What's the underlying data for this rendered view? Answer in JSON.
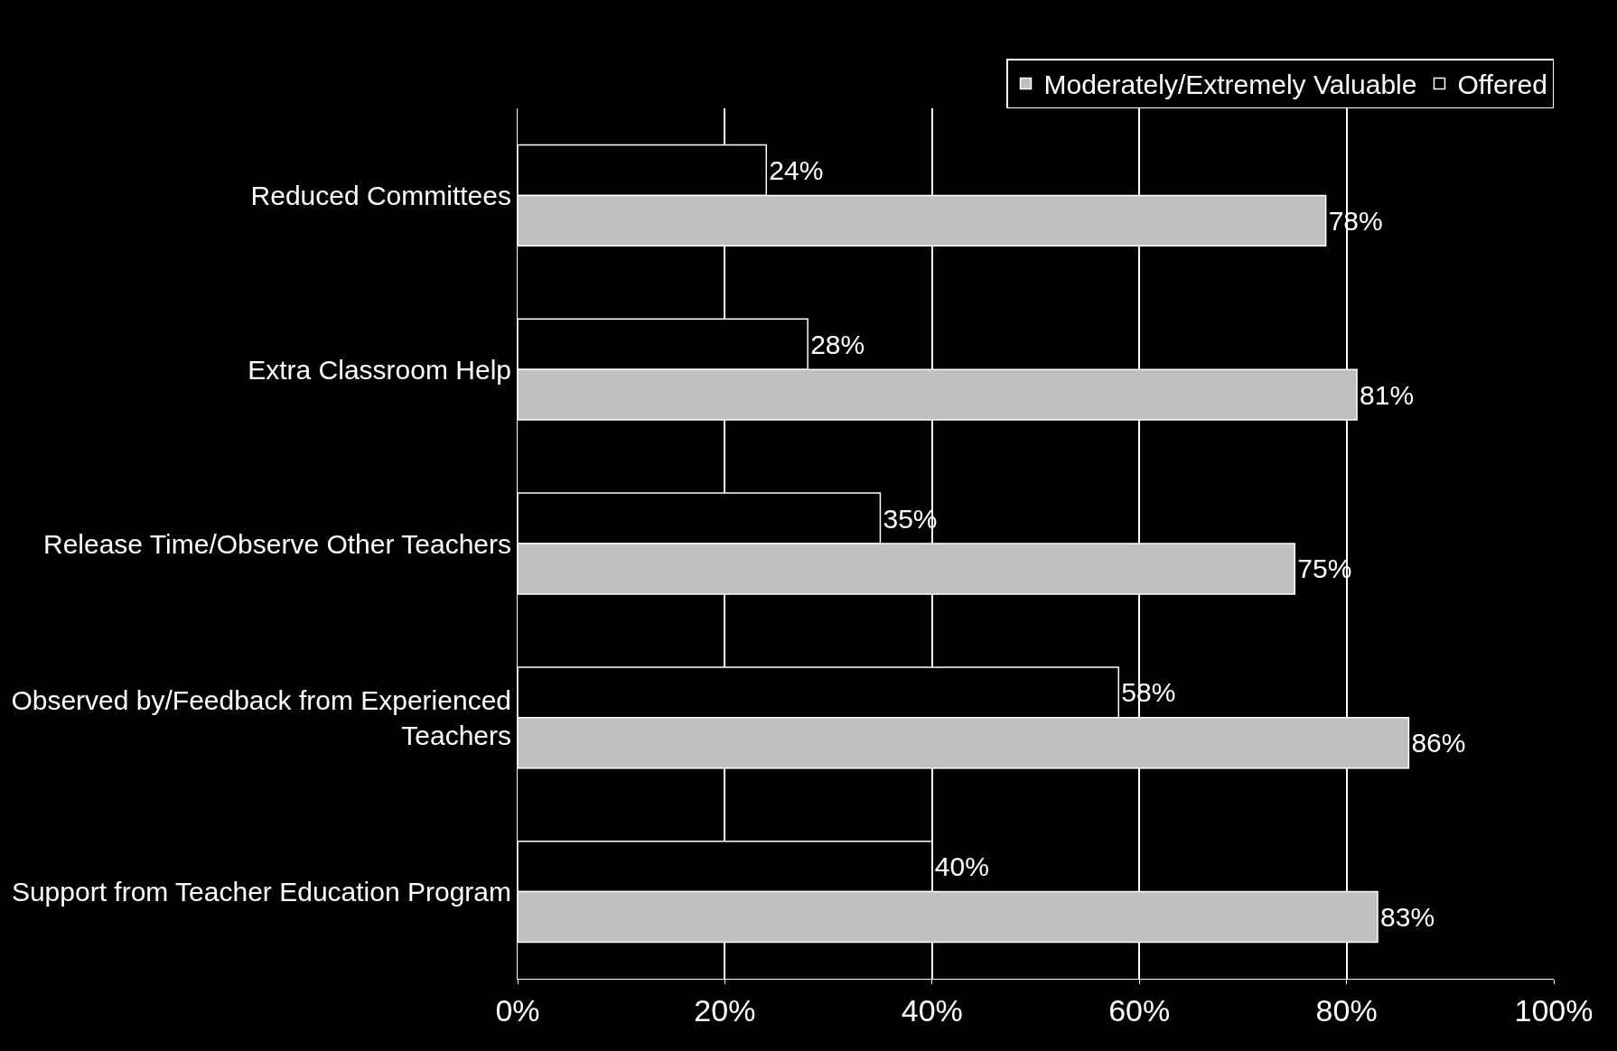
{
  "chart_data": {
    "type": "bar",
    "orientation": "horizontal",
    "categories": [
      "Reduced Committees",
      "Extra Classroom Help",
      "Release Time/Observe Other Teachers",
      "Observed by/Feedback from Experienced Teachers",
      "Support from Teacher Education Program"
    ],
    "series": [
      {
        "name": "Moderately/Extremely Valuable",
        "color": "#c0c0c0",
        "values": [
          78,
          81,
          75,
          86,
          83
        ],
        "value_labels": [
          "78%",
          "81%",
          "75%",
          "86%",
          "83%"
        ]
      },
      {
        "name": "Offered",
        "color": "#000000",
        "values": [
          24,
          28,
          35,
          58,
          40
        ],
        "value_labels": [
          "24%",
          "28%",
          "35%",
          "58%",
          "40%"
        ]
      }
    ],
    "xlim": [
      0,
      100
    ],
    "xticks": [
      {
        "value": 0,
        "label": "0%"
      },
      {
        "value": 20,
        "label": "20%"
      },
      {
        "value": 40,
        "label": "40%"
      },
      {
        "value": 60,
        "label": "60%"
      },
      {
        "value": 80,
        "label": "80%"
      },
      {
        "value": 100,
        "label": "100%"
      }
    ],
    "grid": "x",
    "legend": "top right"
  }
}
